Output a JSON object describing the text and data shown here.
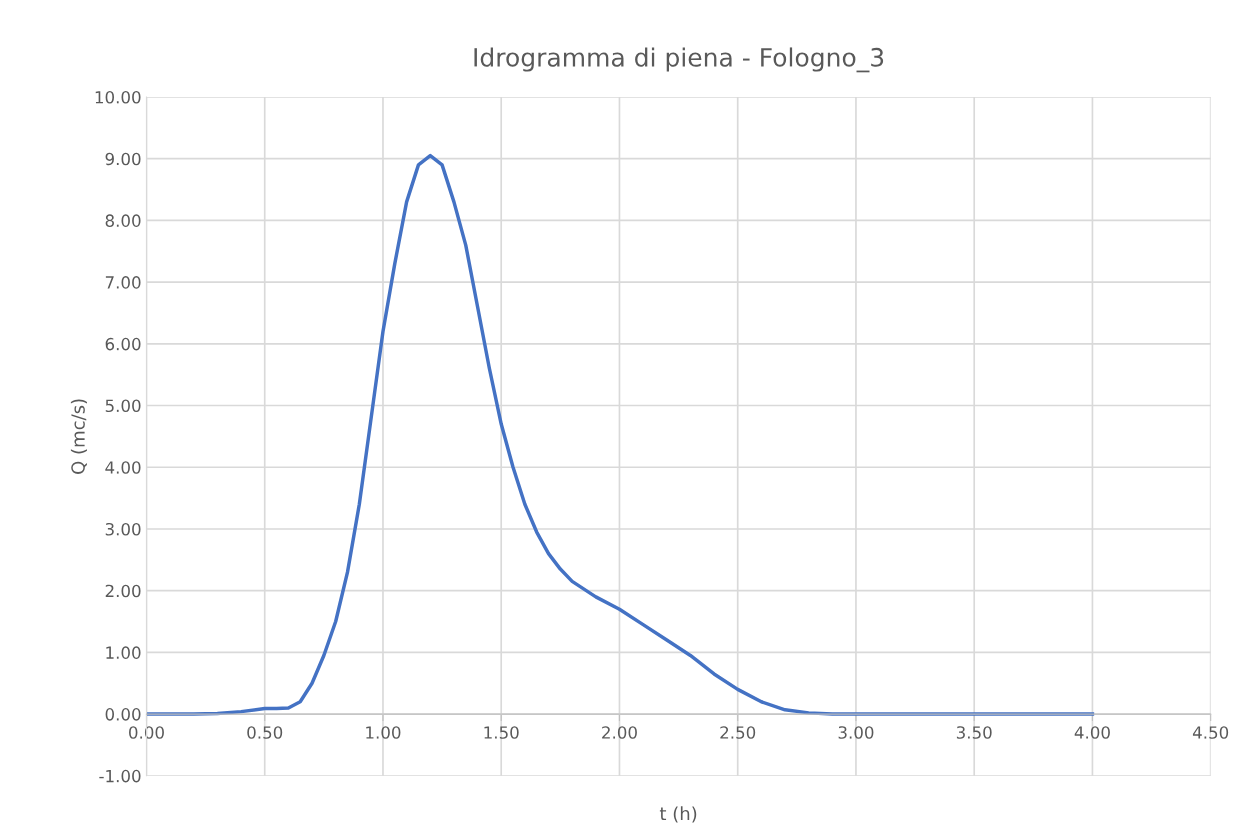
{
  "chart_data": {
    "type": "line",
    "title": "Idrogramma di piena - Fologno_3",
    "xlabel": "t (h)",
    "ylabel": "Q (mc/s)",
    "series": [
      {
        "color": "#4472c4",
        "x": [
          0,
          0.1,
          0.2,
          0.3,
          0.4,
          0.5,
          0.55,
          0.6,
          0.65,
          0.7,
          0.75,
          0.8,
          0.85,
          0.9,
          0.95,
          1.0,
          1.05,
          1.1,
          1.15,
          1.2,
          1.25,
          1.3,
          1.35,
          1.4,
          1.45,
          1.5,
          1.55,
          1.6,
          1.65,
          1.7,
          1.75,
          1.8,
          1.9,
          2.0,
          2.1,
          2.2,
          2.3,
          2.4,
          2.5,
          2.6,
          2.7,
          2.8,
          2.9,
          3.0,
          3.5,
          4.0
        ],
        "values": [
          0,
          0,
          0,
          0.01,
          0.04,
          0.09,
          0.09,
          0.1,
          0.2,
          0.5,
          0.95,
          1.5,
          2.3,
          3.4,
          4.8,
          6.2,
          7.3,
          8.3,
          8.9,
          9.05,
          8.9,
          8.3,
          7.6,
          6.6,
          5.6,
          4.7,
          4.0,
          3.4,
          2.95,
          2.6,
          2.35,
          2.15,
          1.9,
          1.7,
          1.45,
          1.2,
          0.95,
          0.65,
          0.4,
          0.2,
          0.07,
          0.02,
          0,
          0,
          0,
          0
        ]
      }
    ],
    "xlim": [
      0,
      4.5
    ],
    "ylim": [
      -1,
      10
    ],
    "xticks": [
      {
        "value": 0,
        "label": "0.00"
      },
      {
        "value": 0.5,
        "label": "0.50"
      },
      {
        "value": 1,
        "label": "1.00"
      },
      {
        "value": 1.5,
        "label": "1.50"
      },
      {
        "value": 2,
        "label": "2.00"
      },
      {
        "value": 2.5,
        "label": "2.50"
      },
      {
        "value": 3,
        "label": "3.00"
      },
      {
        "value": 3.5,
        "label": "3.50"
      },
      {
        "value": 4,
        "label": "4.00"
      },
      {
        "value": 4.5,
        "label": "4.50"
      }
    ],
    "yticks": [
      {
        "value": -1,
        "label": "-1.00"
      },
      {
        "value": 0,
        "label": "0.00"
      },
      {
        "value": 1,
        "label": "1.00"
      },
      {
        "value": 2,
        "label": "2.00"
      },
      {
        "value": 3,
        "label": "3.00"
      },
      {
        "value": 4,
        "label": "4.00"
      },
      {
        "value": 5,
        "label": "5.00"
      },
      {
        "value": 6,
        "label": "6.00"
      },
      {
        "value": 7,
        "label": "7.00"
      },
      {
        "value": 8,
        "label": "8.00"
      },
      {
        "value": 9,
        "label": "9.00"
      },
      {
        "value": 10,
        "label": "10.00"
      }
    ],
    "grid": true,
    "legend": false,
    "marker": "none",
    "line_style": "solid"
  }
}
